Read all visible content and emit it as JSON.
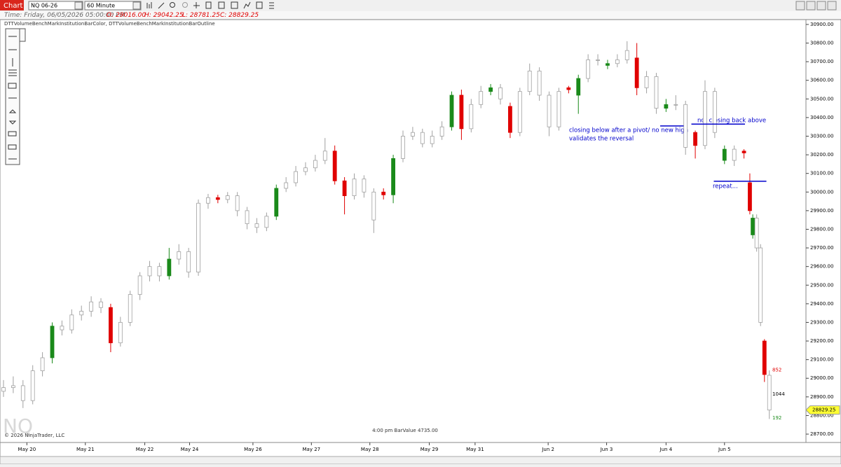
{
  "toolbar": {
    "tab": "Chart",
    "instrument": "NQ 06-26",
    "interval": "60 Minute"
  },
  "info": {
    "time": "Time: Friday, 06/05/2026 05:00:00 PM",
    "open": "O: 29016.00",
    "high": "H: 29042.25",
    "low": "L: 28781.25",
    "close": "C: 28829.25"
  },
  "indicators": "DTTVolumeBenchMarkInstitutionBarColor, DTTVolumeBenchMarkInstitutionBarOutline",
  "watermark": "NQ",
  "copyright": "© 2026 NinjaTrader, LLC",
  "status": "4:00 pm BarValue 4735.00",
  "chart_data": {
    "type": "candlestick",
    "hollow_color": "#ffffff",
    "outline_color": "#a0a0a0",
    "xlim": [
      0,
      82
    ],
    "ylim": [
      28655,
      30926
    ],
    "xticks": [
      {
        "value": 2.4,
        "label": "May 20"
      },
      {
        "value": 8.4,
        "label": "May 21"
      },
      {
        "value": 14.5,
        "label": "May 22"
      },
      {
        "value": 19.1,
        "label": "May 24"
      },
      {
        "value": 25.6,
        "label": "May 26"
      },
      {
        "value": 31.6,
        "label": "May 27"
      },
      {
        "value": 37.6,
        "label": "May 28"
      },
      {
        "value": 43.7,
        "label": "May 29"
      },
      {
        "value": 48.4,
        "label": "May 31"
      },
      {
        "value": 55.9,
        "label": "Jun 2"
      },
      {
        "value": 61.9,
        "label": "Jun 3"
      },
      {
        "value": 68,
        "label": "Jun 4"
      },
      {
        "value": 74,
        "label": "Jun 5"
      }
    ],
    "yticks": [
      {
        "value": 28700,
        "label": "28700.00"
      },
      {
        "value": 28800,
        "label": "28800.00"
      },
      {
        "value": 28900,
        "label": "28900.00"
      },
      {
        "value": 29000,
        "label": "29000.00"
      },
      {
        "value": 29100,
        "label": "29100.00"
      },
      {
        "value": 29200,
        "label": "29200.00"
      },
      {
        "value": 29300,
        "label": "29300.00"
      },
      {
        "value": 29400,
        "label": "29400.00"
      },
      {
        "value": 29500,
        "label": "29500.00"
      },
      {
        "value": 29600,
        "label": "29600.00"
      },
      {
        "value": 29700,
        "label": "29700.00"
      },
      {
        "value": 29800,
        "label": "29800.00"
      },
      {
        "value": 29900,
        "label": "29900.00"
      },
      {
        "value": 30000,
        "label": "30000.00"
      },
      {
        "value": 30100,
        "label": "30100.00"
      },
      {
        "value": 30200,
        "label": "30200.00"
      },
      {
        "value": 30300,
        "label": "30300.00"
      },
      {
        "value": 30400,
        "label": "30400.00"
      },
      {
        "value": 30500,
        "label": "30500.00"
      },
      {
        "value": 30600,
        "label": "30600.00"
      },
      {
        "value": 30700,
        "label": "30700.00"
      },
      {
        "value": 30800,
        "label": "30800.00"
      },
      {
        "value": 30900,
        "label": "30900.00"
      }
    ],
    "candles": [
      {
        "x": 0,
        "o": 28930,
        "h": 28990,
        "l": 28900,
        "c": 28950
      },
      {
        "x": 1,
        "o": 28950,
        "h": 29010,
        "l": 28920,
        "c": 28960
      },
      {
        "x": 2,
        "o": 28960,
        "h": 28990,
        "l": 28840,
        "c": 28880
      },
      {
        "x": 3,
        "o": 28880,
        "h": 29070,
        "l": 28860,
        "c": 29040
      },
      {
        "x": 4,
        "o": 29040,
        "h": 29140,
        "l": 29010,
        "c": 29110
      },
      {
        "x": 5,
        "o": 29110,
        "h": 29300,
        "l": 29080,
        "c": 29280,
        "color": "#1a8a1a"
      },
      {
        "x": 6,
        "o": 29280,
        "h": 29310,
        "l": 29230,
        "c": 29260
      },
      {
        "x": 7,
        "o": 29260,
        "h": 29370,
        "l": 29240,
        "c": 29340
      },
      {
        "x": 8,
        "o": 29340,
        "h": 29390,
        "l": 29310,
        "c": 29360
      },
      {
        "x": 9,
        "o": 29360,
        "h": 29440,
        "l": 29330,
        "c": 29410
      },
      {
        "x": 10,
        "o": 29410,
        "h": 29430,
        "l": 29350,
        "c": 29380
      },
      {
        "x": 11,
        "o": 29380,
        "h": 29400,
        "l": 29140,
        "c": 29190,
        "color": "#e00000"
      },
      {
        "x": 12,
        "o": 29190,
        "h": 29330,
        "l": 29170,
        "c": 29300
      },
      {
        "x": 13,
        "o": 29300,
        "h": 29470,
        "l": 29280,
        "c": 29450
      },
      {
        "x": 14,
        "o": 29450,
        "h": 29570,
        "l": 29420,
        "c": 29550
      },
      {
        "x": 15,
        "o": 29550,
        "h": 29630,
        "l": 29520,
        "c": 29600
      },
      {
        "x": 16,
        "o": 29600,
        "h": 29620,
        "l": 29520,
        "c": 29550
      },
      {
        "x": 17,
        "o": 29550,
        "h": 29700,
        "l": 29530,
        "c": 29640,
        "color": "#1a8a1a"
      },
      {
        "x": 18,
        "o": 29640,
        "h": 29720,
        "l": 29610,
        "c": 29680
      },
      {
        "x": 19,
        "o": 29680,
        "h": 29700,
        "l": 29540,
        "c": 29570
      },
      {
        "x": 20,
        "o": 29570,
        "h": 29960,
        "l": 29550,
        "c": 29940
      },
      {
        "x": 21,
        "o": 29940,
        "h": 29990,
        "l": 29910,
        "c": 29970
      },
      {
        "x": 22,
        "o": 29970,
        "h": 29985,
        "l": 29940,
        "c": 29960,
        "color": "#e00000"
      },
      {
        "x": 23,
        "o": 29960,
        "h": 30000,
        "l": 29940,
        "c": 29980
      },
      {
        "x": 24,
        "o": 29980,
        "h": 30000,
        "l": 29870,
        "c": 29900
      },
      {
        "x": 25,
        "o": 29900,
        "h": 29920,
        "l": 29800,
        "c": 29830
      },
      {
        "x": 26,
        "o": 29830,
        "h": 29860,
        "l": 29780,
        "c": 29810
      },
      {
        "x": 27,
        "o": 29810,
        "h": 29890,
        "l": 29790,
        "c": 29870
      },
      {
        "x": 28,
        "o": 29870,
        "h": 30040,
        "l": 29850,
        "c": 30020,
        "color": "#1a8a1a"
      },
      {
        "x": 29,
        "o": 30020,
        "h": 30080,
        "l": 30000,
        "c": 30050
      },
      {
        "x": 30,
        "o": 30050,
        "h": 30140,
        "l": 30030,
        "c": 30110
      },
      {
        "x": 31,
        "o": 30110,
        "h": 30160,
        "l": 30090,
        "c": 30130
      },
      {
        "x": 32,
        "o": 30130,
        "h": 30200,
        "l": 30110,
        "c": 30170
      },
      {
        "x": 33,
        "o": 30170,
        "h": 30290,
        "l": 30150,
        "c": 30220
      },
      {
        "x": 34,
        "o": 30220,
        "h": 30250,
        "l": 30040,
        "c": 30060,
        "color": "#e00000"
      },
      {
        "x": 35,
        "o": 30060,
        "h": 30080,
        "l": 29880,
        "c": 29980,
        "color": "#e00000"
      },
      {
        "x": 36,
        "o": 29980,
        "h": 30100,
        "l": 29960,
        "c": 30070
      },
      {
        "x": 37,
        "o": 30070,
        "h": 30090,
        "l": 29970,
        "c": 30000
      },
      {
        "x": 38,
        "o": 30000,
        "h": 30020,
        "l": 29780,
        "c": 29850
      },
      {
        "x": 39,
        "o": 30000,
        "h": 30020,
        "l": 29960,
        "c": 29985,
        "color": "#e00000"
      },
      {
        "x": 40,
        "o": 29985,
        "h": 30200,
        "l": 29940,
        "c": 30180,
        "color": "#1a8a1a"
      },
      {
        "x": 41,
        "o": 30180,
        "h": 30330,
        "l": 30160,
        "c": 30300
      },
      {
        "x": 42,
        "o": 30300,
        "h": 30350,
        "l": 30280,
        "c": 30320
      },
      {
        "x": 43,
        "o": 30320,
        "h": 30340,
        "l": 30240,
        "c": 30260
      },
      {
        "x": 44,
        "o": 30260,
        "h": 30330,
        "l": 30240,
        "c": 30300
      },
      {
        "x": 45,
        "o": 30300,
        "h": 30380,
        "l": 30280,
        "c": 30350
      },
      {
        "x": 46,
        "o": 30350,
        "h": 30540,
        "l": 30330,
        "c": 30520,
        "color": "#1a8a1a"
      },
      {
        "x": 47,
        "o": 30520,
        "h": 30550,
        "l": 30280,
        "c": 30340,
        "color": "#e00000"
      },
      {
        "x": 48,
        "o": 30340,
        "h": 30500,
        "l": 30320,
        "c": 30470
      },
      {
        "x": 49,
        "o": 30470,
        "h": 30570,
        "l": 30450,
        "c": 30540
      },
      {
        "x": 50,
        "o": 30540,
        "h": 30580,
        "l": 30520,
        "c": 30560,
        "color": "#1a8a1a"
      },
      {
        "x": 51,
        "o": 30560,
        "h": 30580,
        "l": 30470,
        "c": 30500
      },
      {
        "x": 52,
        "o": 30460,
        "h": 30480,
        "l": 30290,
        "c": 30320,
        "color": "#e00000"
      },
      {
        "x": 53,
        "o": 30320,
        "h": 30560,
        "l": 30300,
        "c": 30540
      },
      {
        "x": 54,
        "o": 30540,
        "h": 30690,
        "l": 30520,
        "c": 30650
      },
      {
        "x": 55,
        "o": 30650,
        "h": 30670,
        "l": 30490,
        "c": 30520
      },
      {
        "x": 56,
        "o": 30520,
        "h": 30540,
        "l": 30300,
        "c": 30350
      },
      {
        "x": 57,
        "o": 30350,
        "h": 30560,
        "l": 30330,
        "c": 30540
      },
      {
        "x": 58,
        "o": 30560,
        "h": 30570,
        "l": 30530,
        "c": 30550,
        "color": "#e00000"
      },
      {
        "x": 59,
        "o": 30520,
        "h": 30630,
        "l": 30420,
        "c": 30610,
        "color": "#1a8a1a"
      },
      {
        "x": 60,
        "o": 30610,
        "h": 30740,
        "l": 30590,
        "c": 30710
      },
      {
        "x": 61,
        "o": 30710,
        "h": 30740,
        "l": 30680,
        "c": 30710
      },
      {
        "x": 62,
        "o": 30680,
        "h": 30710,
        "l": 30660,
        "c": 30690,
        "color": "#1a8a1a"
      },
      {
        "x": 63,
        "o": 30690,
        "h": 30740,
        "l": 30670,
        "c": 30710
      },
      {
        "x": 64,
        "o": 30710,
        "h": 30810,
        "l": 30690,
        "c": 30760
      },
      {
        "x": 65,
        "o": 30720,
        "h": 30800,
        "l": 30520,
        "c": 30560,
        "color": "#e00000"
      },
      {
        "x": 66,
        "o": 30560,
        "h": 30650,
        "l": 30530,
        "c": 30620
      },
      {
        "x": 67,
        "o": 30620,
        "h": 30640,
        "l": 30420,
        "c": 30450
      },
      {
        "x": 68,
        "o": 30450,
        "h": 30500,
        "l": 30430,
        "c": 30470,
        "color": "#1a8a1a"
      },
      {
        "x": 69,
        "o": 30470,
        "h": 30520,
        "l": 30440,
        "c": 30470
      },
      {
        "x": 70,
        "o": 30470,
        "h": 30490,
        "l": 30200,
        "c": 30240
      },
      {
        "x": 71,
        "o": 30320,
        "h": 30330,
        "l": 30180,
        "c": 30250,
        "color": "#e00000"
      },
      {
        "x": 72,
        "o": 30250,
        "h": 30600,
        "l": 30230,
        "c": 30540
      },
      {
        "x": 73,
        "o": 30540,
        "h": 30560,
        "l": 30290,
        "c": 30320
      },
      {
        "x": 74,
        "o": 30170,
        "h": 30250,
        "l": 30150,
        "c": 30230,
        "color": "#1a8a1a"
      },
      {
        "x": 75,
        "o": 30230,
        "h": 30250,
        "l": 30140,
        "c": 30170
      },
      {
        "x": 76,
        "o": 30220,
        "h": 30230,
        "l": 30180,
        "c": 30210,
        "color": "#e00000"
      },
      {
        "x": 76.6,
        "o": 30050,
        "h": 30100,
        "l": 29880,
        "c": 29900,
        "color": "#e00000"
      },
      {
        "x": 76.9,
        "o": 29770,
        "h": 29880,
        "l": 29750,
        "c": 29860,
        "color": "#1a8a1a"
      },
      {
        "x": 77.3,
        "o": 29860,
        "h": 29880,
        "l": 29680,
        "c": 29700
      },
      {
        "x": 77.7,
        "o": 29700,
        "h": 29720,
        "l": 29280,
        "c": 29300
      },
      {
        "x": 78.1,
        "o": 29200,
        "h": 29210,
        "l": 28980,
        "c": 29020,
        "color": "#e00000"
      },
      {
        "x": 78.6,
        "o": 29016,
        "h": 29042.25,
        "l": 28781.25,
        "c": 28829.25
      }
    ],
    "levels": [
      {
        "x": [
          67.4,
          69.8
        ],
        "y": 30355,
        "color": "#0000cc"
      },
      {
        "x": [
          70.6,
          76.1
        ],
        "y": 30365,
        "color": "#0000cc"
      },
      {
        "x": [
          72.9,
          78.3
        ],
        "y": 30058,
        "color": "#0000cc"
      }
    ],
    "annotations": [
      "closing below after a pivot/ no new high",
      "validates the reversal",
      "not closing back above",
      "repeat..."
    ],
    "volume_labels": [
      {
        "value": 852,
        "y": 29045,
        "color": "#e00000"
      },
      {
        "value": 1044,
        "y": 28915,
        "color": "#000000"
      },
      {
        "value": 192,
        "y": 28787,
        "color": "#1a8a1a"
      }
    ],
    "last_price": {
      "value": 28829.25,
      "label": "28829.25",
      "color": "#ffff33"
    }
  }
}
